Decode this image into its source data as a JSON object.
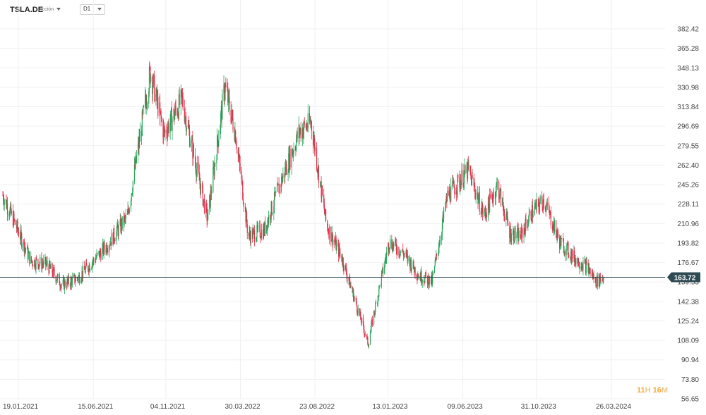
{
  "header": {
    "symbol": "TSLA.DE",
    "symbol_type": "Acción",
    "timeframe": "D1"
  },
  "countdown": {
    "hours": "11",
    "hours_unit": "H",
    "minutes": "16",
    "minutes_unit": "M"
  },
  "colors": {
    "up": "#26a65b",
    "down": "#e0314b",
    "price_line": "#2e4a53",
    "price_badge": "#2e4a53",
    "grid": "#f0f0f0"
  },
  "chart_data": {
    "type": "candlestick",
    "title": "",
    "xlabel": "",
    "ylabel": "",
    "x_ticks": [
      "19.01.2021",
      "15.06.2021",
      "04.11.2021",
      "30.03.2022",
      "23.08.2022",
      "13.01.2023",
      "09.06.2023",
      "31.10.2023",
      "26.03.2024"
    ],
    "y_ticks": [
      382.42,
      365.28,
      348.13,
      330.98,
      313.84,
      296.69,
      279.55,
      262.4,
      245.26,
      228.11,
      210.96,
      193.82,
      176.67,
      159.53,
      142.38,
      125.24,
      108.09,
      90.94,
      73.8,
      56.65
    ],
    "ylim": [
      56.65,
      382.42
    ],
    "current_price": 163.72,
    "grid": true,
    "series_close": [
      [
        "19.01.2021",
        236
      ],
      [
        "15.03.2021",
        178
      ],
      [
        "15.04.2021",
        175
      ],
      [
        "15.05.2021",
        157
      ],
      [
        "15.06.2021",
        163
      ],
      [
        "10.08.2021",
        191
      ],
      [
        "20.09.2021",
        217
      ],
      [
        "04.11.2021",
        345
      ],
      [
        "01.12.2021",
        290
      ],
      [
        "05.01.2022",
        320
      ],
      [
        "24.02.2022",
        215
      ],
      [
        "30.03.2022",
        332
      ],
      [
        "20.04.2022",
        290
      ],
      [
        "15.05.2022",
        200
      ],
      [
        "15.06.2022",
        205
      ],
      [
        "20.07.2022",
        250
      ],
      [
        "23.08.2022",
        292
      ],
      [
        "15.09.2022",
        300
      ],
      [
        "15.10.2022",
        210
      ],
      [
        "15.11.2022",
        180
      ],
      [
        "05.01.2023",
        105
      ],
      [
        "13.01.2023",
        125
      ],
      [
        "15.02.2023",
        195
      ],
      [
        "15.03.2023",
        185
      ],
      [
        "15.04.2023",
        165
      ],
      [
        "10.05.2023",
        160
      ],
      [
        "09.06.2023",
        235
      ],
      [
        "20.07.2023",
        258
      ],
      [
        "20.08.2023",
        218
      ],
      [
        "15.09.2023",
        245
      ],
      [
        "10.10.2023",
        202
      ],
      [
        "31.10.2023",
        200
      ],
      [
        "20.11.2023",
        220
      ],
      [
        "15.12.2023",
        232
      ],
      [
        "15.01.2024",
        195
      ],
      [
        "15.02.2024",
        180
      ],
      [
        "10.03.2024",
        172
      ],
      [
        "26.03.2024",
        160
      ],
      [
        "10.04.2024",
        163.72
      ]
    ]
  }
}
